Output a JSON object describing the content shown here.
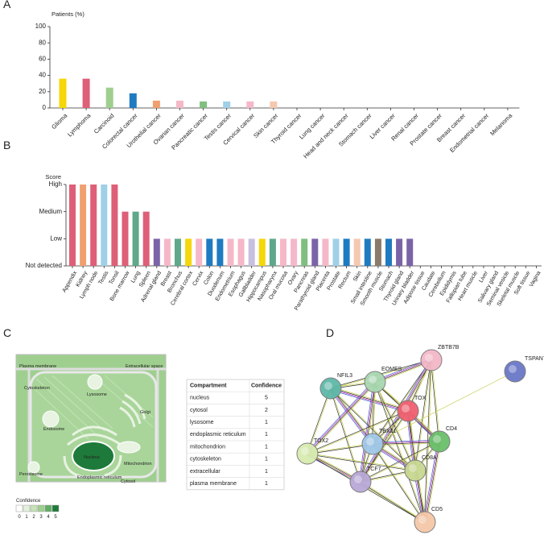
{
  "chart_data": [
    {
      "type": "bar",
      "label": "A",
      "ylabel": "Patients (%)",
      "categories": [
        "Glioma",
        "Lymphoma",
        "Carcinoid",
        "Colorectal cancer",
        "Urothelial cancer",
        "Ovarian cancer",
        "Pancreatic cancer",
        "Testis cancer",
        "Cervical cancer",
        "Skin cancer",
        "Thyroid cancer",
        "Lung cancer",
        "Head and neck cancer",
        "Stomach cancer",
        "Liver cancer",
        "Renal cancer",
        "Prostate cancer",
        "Breast cancer",
        "Endometrial cancer",
        "Melanoma"
      ],
      "values": [
        36,
        36,
        25,
        18,
        9,
        9,
        8,
        8,
        8,
        8,
        0,
        0,
        0,
        0,
        0,
        0,
        0,
        0,
        0,
        0
      ],
      "colors": [
        "#f5d70a",
        "#de5f78",
        "#9fcf8f",
        "#1f7bc0",
        "#f0a070",
        "#f5b8c8",
        "#7fbf7f",
        "#a0d0e8",
        "#f5b8c8",
        "#f5c8b0",
        "#cccccc",
        "#cccccc",
        "#cccccc",
        "#cccccc",
        "#cccccc",
        "#cccccc",
        "#cccccc",
        "#cccccc",
        "#cccccc",
        "#cccccc"
      ],
      "ylim": [
        0,
        100
      ],
      "yticks": [
        0,
        20,
        40,
        60,
        80,
        100
      ]
    },
    {
      "type": "bar",
      "label": "B",
      "ylabel": "Score",
      "categories": [
        "Appendix",
        "Kidney",
        "Lymph node",
        "Testis",
        "Tonsil",
        "Bone marrow",
        "Lung",
        "Spleen",
        "Adrenal gland",
        "Breast",
        "Bronchus",
        "Cerebral cortex",
        "Cervix",
        "Colon",
        "Duodenum",
        "Endometrium",
        "Esophagus",
        "Gallbladder",
        "Hippocampus",
        "Nasopharynx",
        "Oral mucosa",
        "Ovary",
        "Pancreas",
        "Parathyroid gland",
        "Placenta",
        "Prostate",
        "Rectum",
        "Skin",
        "Small intestine",
        "Smooth muscle",
        "Stomach",
        "Thyroid gland",
        "Urinary bladder",
        "Adipose tissue",
        "Caudate",
        "Cerebellum",
        "Epididymis",
        "Fallopian tube",
        "Heart muscle",
        "Liver",
        "Salivary gland",
        "Seminal vesicle",
        "Skeletal muscle",
        "Soft tissue",
        "Vagina"
      ],
      "values": [
        3,
        3,
        3,
        3,
        3,
        2,
        2,
        2,
        1,
        1,
        1,
        1,
        1,
        1,
        1,
        1,
        1,
        1,
        1,
        1,
        1,
        1,
        1,
        1,
        1,
        1,
        1,
        1,
        1,
        1,
        1,
        1,
        1,
        0,
        0,
        0,
        0,
        0,
        0,
        0,
        0,
        0,
        0,
        0,
        0
      ],
      "colors": [
        "#de5f78",
        "#f0a070",
        "#de5f78",
        "#a0d0e8",
        "#de5f78",
        "#de5f78",
        "#5fa88a",
        "#de5f78",
        "#7a63a8",
        "#f5b8c8",
        "#5fa88a",
        "#f5d70a",
        "#f5b8c8",
        "#1f7bc0",
        "#1f7bc0",
        "#f5b8c8",
        "#f5b8c8",
        "#c8c0e0",
        "#f5d70a",
        "#5fa88a",
        "#f5b8c8",
        "#f5b8c8",
        "#7fbf7f",
        "#7a63a8",
        "#f5b8c8",
        "#a0d0e8",
        "#1f7bc0",
        "#f5c8b0",
        "#1f7bc0",
        "#8a7a6a",
        "#1f7bc0",
        "#7a63a8",
        "#7a63a8",
        "#f0a070",
        "#cccccc",
        "#cccccc",
        "#cccccc",
        "#cccccc",
        "#cccccc",
        "#cccccc",
        "#cccccc",
        "#cccccc",
        "#cccccc",
        "#cccccc",
        "#cccccc"
      ],
      "ylim": [
        0,
        3
      ],
      "yticks": [
        {
          "value": 0,
          "label": "Not detected"
        },
        {
          "value": 1,
          "label": "Low"
        },
        {
          "value": 2,
          "label": "Medium"
        },
        {
          "value": 3,
          "label": "High"
        }
      ]
    }
  ],
  "panel_c": {
    "label": "C",
    "cell_labels": [
      "Plasma membrane",
      "Extracellular space",
      "Lysosome",
      "Cytoskeleton",
      "Golgi",
      "Endosome",
      "Nucleus",
      "Mitochondrion",
      "Peroxisome",
      "Endoplasmic reticulum",
      "Cytosol"
    ],
    "legend": {
      "title": "Confidence",
      "levels": [
        0,
        1,
        2,
        3,
        4,
        5
      ],
      "colors": [
        "#ffffff",
        "#e4f1dc",
        "#c5e2b8",
        "#9fcf8f",
        "#5fae62",
        "#1e7a3a"
      ]
    },
    "table": {
      "header": [
        "Compartment",
        "Confidence"
      ],
      "rows": [
        [
          "nucleus",
          5
        ],
        [
          "cytosol",
          2
        ],
        [
          "lysosome",
          1
        ],
        [
          "endoplasmic reticulum",
          1
        ],
        [
          "mitochondrion",
          1
        ],
        [
          "cytoskeleton",
          1
        ],
        [
          "extracellular",
          1
        ],
        [
          "plasma membrane",
          1
        ]
      ]
    }
  },
  "panel_d": {
    "label": "D",
    "nodes": [
      {
        "label": "ZBTB7B"
      },
      {
        "label": "TSPAN7"
      },
      {
        "label": "NFIL3"
      },
      {
        "label": "EOMES"
      },
      {
        "label": "TOX"
      },
      {
        "label": "CD4"
      },
      {
        "label": "TOX2"
      },
      {
        "label": "TBX21"
      },
      {
        "label": "CD8A"
      },
      {
        "label": "TCF7"
      },
      {
        "label": "CD5"
      }
    ]
  }
}
